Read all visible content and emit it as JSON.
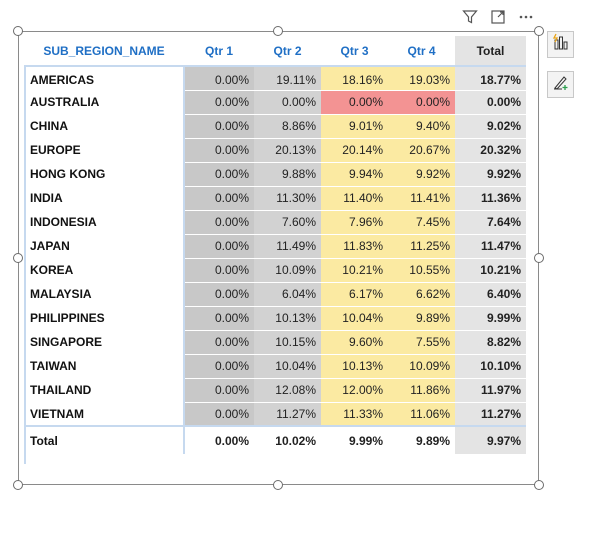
{
  "table": {
    "header": [
      "SUB_REGION_NAME",
      "Qtr 1",
      "Qtr 2",
      "Qtr 3",
      "Qtr 4",
      "Total"
    ],
    "rows": [
      {
        "name": "AMERICAS",
        "q1": "0.00%",
        "q2": "19.11%",
        "q3": "18.16%",
        "q4": "19.03%",
        "total": "18.77%"
      },
      {
        "name": "AUSTRALIA",
        "q1": "0.00%",
        "q2": "0.00%",
        "q3": "0.00%",
        "q4": "0.00%",
        "total": "0.00%"
      },
      {
        "name": "CHINA",
        "q1": "0.00%",
        "q2": "8.86%",
        "q3": "9.01%",
        "q4": "9.40%",
        "total": "9.02%"
      },
      {
        "name": "EUROPE",
        "q1": "0.00%",
        "q2": "20.13%",
        "q3": "20.14%",
        "q4": "20.67%",
        "total": "20.32%"
      },
      {
        "name": "HONG KONG",
        "q1": "0.00%",
        "q2": "9.88%",
        "q3": "9.94%",
        "q4": "9.92%",
        "total": "9.92%"
      },
      {
        "name": "INDIA",
        "q1": "0.00%",
        "q2": "11.30%",
        "q3": "11.40%",
        "q4": "11.41%",
        "total": "11.36%"
      },
      {
        "name": "INDONESIA",
        "q1": "0.00%",
        "q2": "7.60%",
        "q3": "7.96%",
        "q4": "7.45%",
        "total": "7.64%"
      },
      {
        "name": "JAPAN",
        "q1": "0.00%",
        "q2": "11.49%",
        "q3": "11.83%",
        "q4": "11.25%",
        "total": "11.47%"
      },
      {
        "name": "KOREA",
        "q1": "0.00%",
        "q2": "10.09%",
        "q3": "10.21%",
        "q4": "10.55%",
        "total": "10.21%"
      },
      {
        "name": "MALAYSIA",
        "q1": "0.00%",
        "q2": "6.04%",
        "q3": "6.17%",
        "q4": "6.62%",
        "total": "6.40%"
      },
      {
        "name": "PHILIPPINES",
        "q1": "0.00%",
        "q2": "10.13%",
        "q3": "10.04%",
        "q4": "9.89%",
        "total": "9.99%"
      },
      {
        "name": "SINGAPORE",
        "q1": "0.00%",
        "q2": "10.15%",
        "q3": "9.60%",
        "q4": "7.55%",
        "total": "8.82%"
      },
      {
        "name": "TAIWAN",
        "q1": "0.00%",
        "q2": "10.04%",
        "q3": "10.13%",
        "q4": "10.09%",
        "total": "10.10%"
      },
      {
        "name": "THAILAND",
        "q1": "0.00%",
        "q2": "12.08%",
        "q3": "12.00%",
        "q4": "11.86%",
        "total": "11.97%"
      },
      {
        "name": "VIETNAM",
        "q1": "0.00%",
        "q2": "11.27%",
        "q3": "11.33%",
        "q4": "11.06%",
        "total": "11.27%"
      }
    ],
    "total_row": {
      "name": "Total",
      "q1": "0.00%",
      "q2": "10.02%",
      "q3": "9.99%",
      "q4": "9.89%",
      "total": "9.97%"
    }
  },
  "colors": {
    "header_text": "#1f6fc5",
    "q1_fill": "#c8c8c8",
    "q2_fill": "#d2d2d2",
    "highlight_yellow": "#fbeaa2",
    "highlight_red": "#f39393",
    "total_fill": "#e4e4e4"
  },
  "icons": {
    "toolbar": [
      "filter-icon",
      "focus-mode-icon",
      "more-options-icon"
    ],
    "side_panel": [
      "build-visual-icon",
      "format-visual-icon"
    ]
  }
}
